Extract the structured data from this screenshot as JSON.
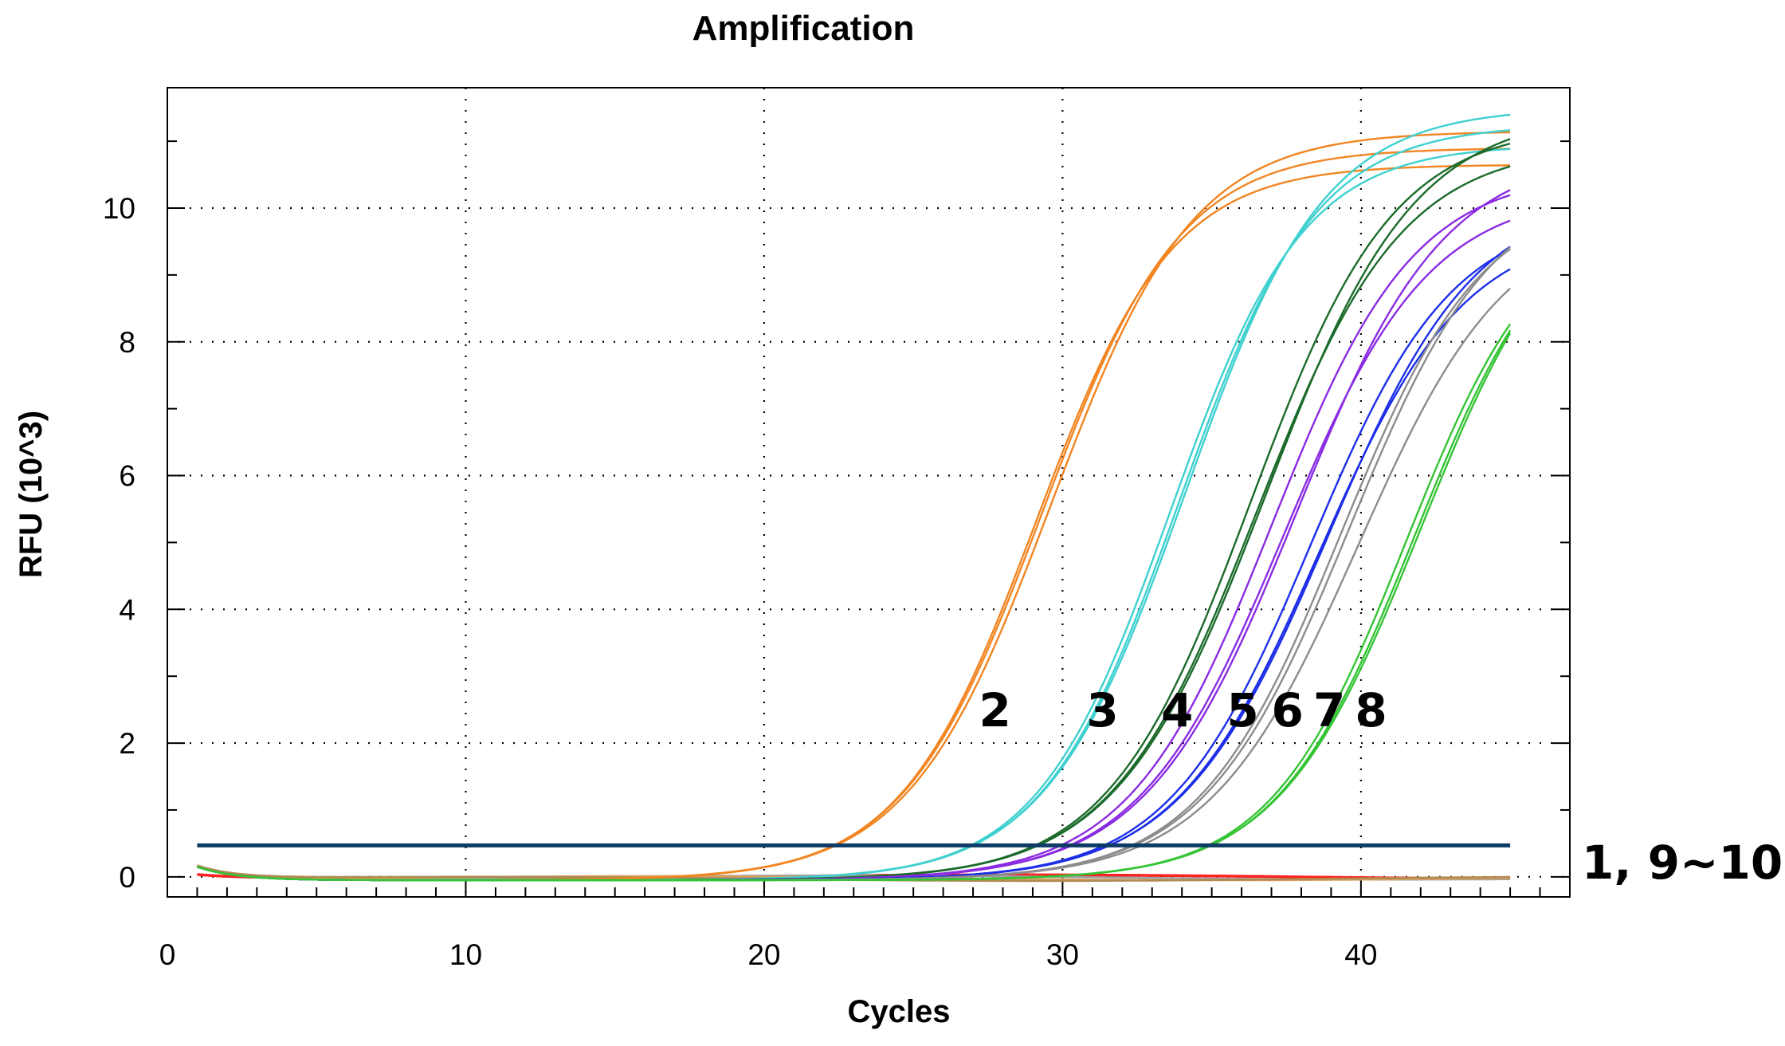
{
  "chart_data": {
    "type": "line",
    "title": "Amplification",
    "xlabel": "Cycles",
    "ylabel": "RFU (10^3)",
    "xlim": [
      0,
      47
    ],
    "ylim": [
      -0.3,
      11.8
    ],
    "x_ticks": [
      0,
      10,
      20,
      30,
      40
    ],
    "y_ticks": [
      0,
      2,
      4,
      6,
      8,
      10
    ],
    "grid": true,
    "threshold": {
      "value": 0.47,
      "color": "#0d3b66"
    },
    "x_start": 1,
    "x_end": 45,
    "groups": [
      {
        "name": "2",
        "color": "#f28522",
        "label_x": 27.2,
        "label_y": 2.25,
        "curves": [
          {
            "ct": 29.1,
            "plateau": 10.7,
            "k": 0.44
          },
          {
            "ct": 29.3,
            "plateau": 10.95,
            "k": 0.43
          },
          {
            "ct": 29.6,
            "plateau": 11.2,
            "k": 0.42
          }
        ]
      },
      {
        "name": "3",
        "color": "#3fd0d0",
        "label_x": 30.8,
        "label_y": 2.25,
        "curves": [
          {
            "ct": 33.6,
            "plateau": 11.0,
            "k": 0.45
          },
          {
            "ct": 33.9,
            "plateau": 11.3,
            "k": 0.44
          },
          {
            "ct": 34.1,
            "plateau": 11.55,
            "k": 0.43
          }
        ]
      },
      {
        "name": "4",
        "color": "#1b6b2a",
        "label_x": 33.3,
        "label_y": 2.25,
        "curves": [
          {
            "ct": 36.3,
            "plateau": 11.3,
            "k": 0.42
          },
          {
            "ct": 36.5,
            "plateau": 11.0,
            "k": 0.41
          },
          {
            "ct": 36.8,
            "plateau": 11.5,
            "k": 0.4
          }
        ]
      },
      {
        "name": "5",
        "color": "#8a2be2",
        "label_x": 35.5,
        "label_y": 2.25,
        "curves": [
          {
            "ct": 37.0,
            "plateau": 10.6,
            "k": 0.42
          },
          {
            "ct": 37.4,
            "plateau": 10.3,
            "k": 0.41
          },
          {
            "ct": 37.8,
            "plateau": 10.9,
            "k": 0.4
          }
        ]
      },
      {
        "name": "6",
        "color": "#1c2ee8",
        "label_x": 37.0,
        "label_y": 2.25,
        "curves": [
          {
            "ct": 38.3,
            "plateau": 10.0,
            "k": 0.42
          },
          {
            "ct": 38.6,
            "plateau": 9.8,
            "k": 0.41
          },
          {
            "ct": 38.9,
            "plateau": 10.3,
            "k": 0.4
          }
        ]
      },
      {
        "name": "7",
        "color": "#8c8c8c",
        "label_x": 38.4,
        "label_y": 2.25,
        "curves": [
          {
            "ct": 39.3,
            "plateau": 10.3,
            "k": 0.42
          },
          {
            "ct": 39.6,
            "plateau": 10.5,
            "k": 0.41
          },
          {
            "ct": 39.9,
            "plateau": 10.0,
            "k": 0.4
          }
        ]
      },
      {
        "name": "8",
        "color": "#35c435",
        "label_x": 39.8,
        "label_y": 2.25,
        "curves": [
          {
            "ct": 41.5,
            "plateau": 10.1,
            "k": 0.44
          },
          {
            "ct": 41.8,
            "plateau": 10.3,
            "k": 0.43
          },
          {
            "ct": 42.0,
            "plateau": 10.5,
            "k": 0.42
          }
        ]
      }
    ],
    "negative_label": "1, 9~10",
    "negative_color": "#ff2020"
  }
}
